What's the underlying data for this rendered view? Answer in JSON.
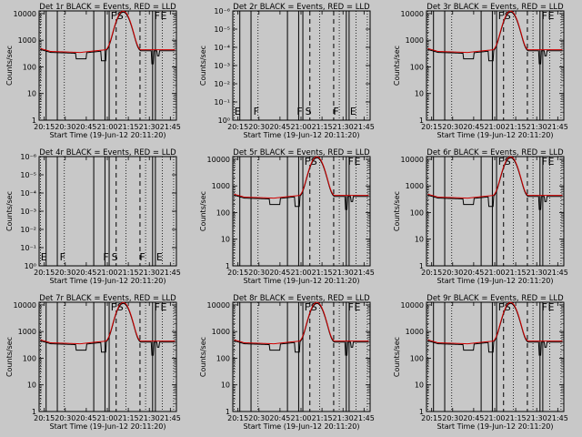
{
  "figure": {
    "xlabel": "Start Time (19-Jun-12 20:11:20)",
    "ylabel": "Counts/sec",
    "colors": {
      "background": "#c8c8c8",
      "events": "#000000",
      "lld": "#d00000"
    }
  },
  "chart_data": [
    {
      "type": "line",
      "title": "Det 1r BLACK = Events, RED = LLD",
      "kind": "normal",
      "xlabel": "Start Time (19-Jun-12 20:11:20)",
      "ylabel": "Counts/sec",
      "xticks": [
        "20:15",
        "20:30",
        "20:45",
        "21:00",
        "21:15",
        "21:30",
        "21:45"
      ],
      "yticks": [
        "1",
        "10",
        "100",
        "1000",
        "10000"
      ],
      "ylim": [
        1,
        10000
      ],
      "yscale": "log",
      "series": [
        {
          "name": "Events",
          "color": "#000000"
        },
        {
          "name": "LLD",
          "color": "#d00000"
        }
      ],
      "flags": [
        "F",
        "S",
        "F",
        "E"
      ]
    },
    {
      "type": "line",
      "title": "Det 2r BLACK = Events, RED = LLD",
      "kind": "empty",
      "xlabel": "Start Time (19-Jun-12 20:11:20)",
      "ylabel": "Counts/sec",
      "xticks": [
        "20:15",
        "20:30",
        "20:45",
        "21:00",
        "21:15",
        "21:30",
        "21:45"
      ],
      "yticks": [
        "10⁰",
        "10⁻¹",
        "10⁻²",
        "10⁻³",
        "10⁻⁴",
        "10⁻⁵",
        "10⁻⁶"
      ],
      "yscale": "log",
      "series": [
        {
          "name": "Events",
          "color": "#000000"
        },
        {
          "name": "LLD",
          "color": "#d00000"
        }
      ],
      "flags": [
        "E",
        "F",
        "F",
        "S",
        "F",
        "E"
      ]
    },
    {
      "type": "line",
      "title": "Det 3r BLACK = Events, RED = LLD",
      "kind": "normal",
      "xlabel": "Start Time (19-Jun-12 20:11:20)",
      "ylabel": "Counts/sec",
      "xticks": [
        "20:15",
        "20:30",
        "20:45",
        "21:00",
        "21:15",
        "21:30",
        "21:45"
      ],
      "yticks": [
        "1",
        "10",
        "100",
        "1000",
        "10000"
      ],
      "ylim": [
        1,
        10000
      ],
      "yscale": "log",
      "series": [
        {
          "name": "Events",
          "color": "#000000"
        },
        {
          "name": "LLD",
          "color": "#d00000"
        }
      ],
      "flags": [
        "F",
        "S",
        "F",
        "E"
      ]
    },
    {
      "type": "line",
      "title": "Det 4r BLACK = Events, RED = LLD",
      "kind": "empty",
      "xlabel": "Start Time (19-Jun-12 20:11:20)",
      "ylabel": "Counts/sec",
      "xticks": [
        "20:15",
        "20:30",
        "20:45",
        "21:00",
        "21:15",
        "21:30",
        "21:45"
      ],
      "yticks": [
        "10⁰",
        "10⁻¹",
        "10⁻²",
        "10⁻³",
        "10⁻⁴",
        "10⁻⁵",
        "10⁻⁶"
      ],
      "yscale": "log",
      "series": [
        {
          "name": "Events",
          "color": "#000000"
        },
        {
          "name": "LLD",
          "color": "#d00000"
        }
      ],
      "flags": [
        "E",
        "F",
        "F",
        "S",
        "F",
        "E"
      ]
    },
    {
      "type": "line",
      "title": "Det 5r BLACK = Events, RED = LLD",
      "kind": "normal",
      "xlabel": "Start Time (19-Jun-12 20:11:20)",
      "ylabel": "Counts/sec",
      "xticks": [
        "20:15",
        "20:30",
        "20:45",
        "21:00",
        "21:15",
        "21:30",
        "21:45"
      ],
      "yticks": [
        "1",
        "10",
        "100",
        "1000",
        "10000"
      ],
      "ylim": [
        1,
        10000
      ],
      "yscale": "log",
      "series": [
        {
          "name": "Events",
          "color": "#000000"
        },
        {
          "name": "LLD",
          "color": "#d00000"
        }
      ],
      "flags": [
        "F",
        "S",
        "F",
        "E"
      ]
    },
    {
      "type": "line",
      "title": "Det 6r BLACK = Events, RED = LLD",
      "kind": "normal",
      "xlabel": "Start Time (19-Jun-12 20:11:20)",
      "ylabel": "Counts/sec",
      "xticks": [
        "20:15",
        "20:30",
        "20:45",
        "21:00",
        "21:15",
        "21:30",
        "21:45"
      ],
      "yticks": [
        "1",
        "10",
        "100",
        "1000",
        "10000"
      ],
      "ylim": [
        1,
        10000
      ],
      "yscale": "log",
      "series": [
        {
          "name": "Events",
          "color": "#000000"
        },
        {
          "name": "LLD",
          "color": "#d00000"
        }
      ],
      "flags": [
        "F",
        "S",
        "F",
        "E"
      ]
    },
    {
      "type": "line",
      "title": "Det 7r BLACK = Events, RED = LLD",
      "kind": "normal",
      "xlabel": "Start Time (19-Jun-12 20:11:20)",
      "ylabel": "Counts/sec",
      "xticks": [
        "20:15",
        "20:30",
        "20:45",
        "21:00",
        "21:15",
        "21:30",
        "21:45"
      ],
      "yticks": [
        "1",
        "10",
        "100",
        "1000",
        "10000"
      ],
      "ylim": [
        1,
        10000
      ],
      "yscale": "log",
      "series": [
        {
          "name": "Events",
          "color": "#000000"
        },
        {
          "name": "LLD",
          "color": "#d00000"
        }
      ],
      "flags": [
        "F",
        "S",
        "F",
        "E"
      ]
    },
    {
      "type": "line",
      "title": "Det 8r BLACK = Events, RED = LLD",
      "kind": "normal",
      "xlabel": "Start Time (19-Jun-12 20:11:20)",
      "ylabel": "Counts/sec",
      "xticks": [
        "20:15",
        "20:30",
        "20:45",
        "21:00",
        "21:15",
        "21:30",
        "21:45"
      ],
      "yticks": [
        "1",
        "10",
        "100",
        "1000",
        "10000"
      ],
      "ylim": [
        1,
        10000
      ],
      "yscale": "log",
      "series": [
        {
          "name": "Events",
          "color": "#000000"
        },
        {
          "name": "LLD",
          "color": "#d00000"
        }
      ],
      "flags": [
        "F",
        "S",
        "F",
        "E"
      ]
    },
    {
      "type": "line",
      "title": "Det 9r BLACK = Events, RED = LLD",
      "kind": "normal",
      "xlabel": "Start Time (19-Jun-12 20:11:20)",
      "ylabel": "Counts/sec",
      "xticks": [
        "20:15",
        "20:30",
        "20:45",
        "21:00",
        "21:15",
        "21:30",
        "21:45"
      ],
      "yticks": [
        "1",
        "10",
        "100",
        "1000",
        "10000"
      ],
      "ylim": [
        1,
        10000
      ],
      "yscale": "log",
      "series": [
        {
          "name": "Events",
          "color": "#000000"
        },
        {
          "name": "LLD",
          "color": "#d00000"
        }
      ],
      "flags": [
        "F",
        "S",
        "F",
        "E"
      ]
    }
  ]
}
